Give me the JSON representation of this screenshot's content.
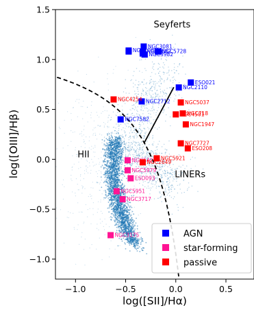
{
  "chart_data": {
    "type": "scatter",
    "xlabel": "log([SII]/Hα)",
    "ylabel": "log([OIII]/Hβ)",
    "xlim": [
      -1.2,
      0.78
    ],
    "ylim": [
      -1.2,
      1.5
    ],
    "xticks": [
      -1.0,
      -0.5,
      0.0,
      0.5
    ],
    "xtick_labels": [
      "−1.0",
      "−0.5",
      "0.0",
      "0.5"
    ],
    "yticks": [
      -1.0,
      -0.5,
      0.0,
      0.5,
      1.0,
      1.5
    ],
    "ytick_labels": [
      "−1.0",
      "−0.5",
      "0.0",
      "0.5",
      "1.0",
      "1.5"
    ],
    "region_labels": [
      {
        "text": "Seyferts",
        "x": -0.22,
        "y": 1.32
      },
      {
        "text": "HII",
        "x": -0.98,
        "y": 0.02
      },
      {
        "text": "LINERs",
        "x": -0.01,
        "y": -0.18
      }
    ],
    "colors": {
      "AGN": "#0000ff",
      "star-forming": "#ff1493",
      "passive": "#ff0000",
      "background": "#1f77b4"
    },
    "legend": {
      "position": "bottom-right",
      "entries": [
        "AGN",
        "star-forming",
        "passive"
      ]
    },
    "series": [
      {
        "name": "AGN",
        "points": [
          {
            "label": "NGC3081",
            "x": -0.32,
            "y": 1.13
          },
          {
            "label": "",
            "x": -0.47,
            "y": 1.08
          },
          {
            "label": "",
            "x": -0.33,
            "y": 1.06
          },
          {
            "label": "",
            "x": -0.17,
            "y": 1.08
          },
          {
            "label": "NGC7682",
            "x": -0.33,
            "y": 1.08
          },
          {
            "label": "NGC5728",
            "x": -0.18,
            "y": 1.08
          },
          {
            "label": "NGC1068",
            "x": -0.47,
            "y": 1.09
          },
          {
            "label": "NGC3982",
            "x": -0.31,
            "y": 1.05
          },
          {
            "label": "ESO021",
            "x": 0.15,
            "y": 0.77
          },
          {
            "label": "NGC2110",
            "x": 0.03,
            "y": 0.72
          },
          {
            "label": "NGC2712",
            "x": -0.34,
            "y": 0.58
          },
          {
            "label": "NGC7582",
            "x": -0.55,
            "y": 0.4
          }
        ]
      },
      {
        "name": "star-forming",
        "points": [
          {
            "label": "NGC5427",
            "x": -0.48,
            "y": -0.01
          },
          {
            "label": "NGC5979",
            "x": -0.48,
            "y": -0.11
          },
          {
            "label": "ESO093",
            "x": -0.45,
            "y": -0.19
          },
          {
            "label": "NGC5951",
            "x": -0.59,
            "y": -0.32
          },
          {
            "label": "NGC3717",
            "x": -0.53,
            "y": -0.4
          },
          {
            "label": "NGC3175",
            "x": -0.65,
            "y": -0.76
          }
        ]
      },
      {
        "name": "passive",
        "points": [
          {
            "label": "NGC4254",
            "x": -0.62,
            "y": 0.6
          },
          {
            "label": "NGC5037",
            "x": 0.05,
            "y": 0.57
          },
          {
            "label": "NGC4501",
            "x": 0.0,
            "y": 0.45
          },
          {
            "label": "NGC718",
            "x": 0.07,
            "y": 0.46
          },
          {
            "label": "NGC1947",
            "x": 0.1,
            "y": 0.35
          },
          {
            "label": "NGC7727",
            "x": 0.05,
            "y": 0.16
          },
          {
            "label": "ESO208",
            "x": 0.12,
            "y": 0.11
          },
          {
            "label": "NGC5921",
            "x": -0.19,
            "y": 0.01
          },
          {
            "label": "NGC2649",
            "x": -0.33,
            "y": -0.03
          }
        ]
      }
    ]
  }
}
